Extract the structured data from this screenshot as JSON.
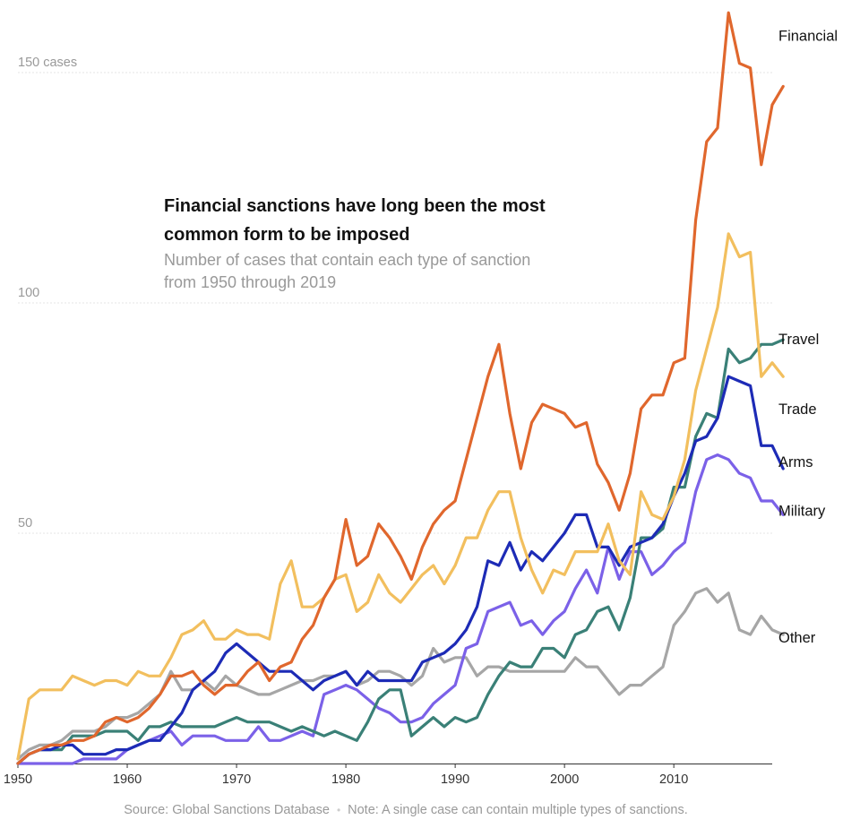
{
  "chart_data": {
    "type": "line",
    "title": "Financial sanctions have long been the most common form to be imposed",
    "subtitle": "Number of cases that contain each type of sanction from 1950 through 2019",
    "xlabel": "",
    "ylabel": "",
    "xlim": [
      1950,
      2019
    ],
    "ylim": [
      0,
      150
    ],
    "x_ticks": [
      {
        "value": 1950,
        "label": "1950"
      },
      {
        "value": 1960,
        "label": "1960"
      },
      {
        "value": 1970,
        "label": "1970"
      },
      {
        "value": 1980,
        "label": "1980"
      },
      {
        "value": 1990,
        "label": "1990"
      },
      {
        "value": 2000,
        "label": "2000"
      },
      {
        "value": 2010,
        "label": "2010"
      }
    ],
    "y_ticks": [
      {
        "value": 50,
        "label": "50"
      },
      {
        "value": 100,
        "label": "100"
      },
      {
        "value": 150,
        "label": "150 cases"
      }
    ],
    "x_start": 1950,
    "series": [
      {
        "name": "Other",
        "color": "#a6a6a6",
        "values": [
          1,
          3,
          4,
          4,
          5,
          7,
          7,
          7,
          8,
          10,
          10,
          11,
          13,
          15,
          20,
          16,
          16,
          18,
          16,
          19,
          17,
          16,
          15,
          15,
          16,
          17,
          18,
          18,
          19,
          19,
          20,
          17,
          18,
          20,
          20,
          19,
          17,
          19,
          25,
          22,
          23,
          23,
          19,
          21,
          21,
          20,
          20,
          20,
          20,
          20,
          20,
          23,
          21,
          21,
          18,
          15,
          17,
          17,
          19,
          21,
          30,
          33,
          37,
          38,
          35,
          37,
          29,
          28,
          32,
          29,
          28
        ]
      },
      {
        "name": "Military",
        "color": "#7b61e8",
        "values": [
          0,
          0,
          0,
          0,
          0,
          0,
          1,
          1,
          1,
          1,
          3,
          4,
          5,
          6,
          7,
          4,
          6,
          6,
          6,
          5,
          5,
          5,
          8,
          5,
          5,
          6,
          7,
          6,
          15,
          16,
          17,
          16,
          14,
          12,
          11,
          9,
          9,
          10,
          13,
          15,
          17,
          25,
          26,
          33,
          34,
          35,
          30,
          31,
          28,
          31,
          33,
          38,
          42,
          37,
          47,
          40,
          46,
          46,
          41,
          43,
          46,
          48,
          59,
          66,
          67,
          66,
          63,
          62,
          57,
          57,
          54
        ]
      },
      {
        "name": "Travel",
        "color": "#3a8077",
        "values": [
          0,
          2,
          3,
          3,
          3,
          6,
          6,
          6,
          7,
          7,
          7,
          5,
          8,
          8,
          9,
          8,
          8,
          8,
          8,
          9,
          10,
          9,
          9,
          9,
          8,
          7,
          8,
          7,
          6,
          7,
          6,
          5,
          9,
          14,
          16,
          16,
          6,
          8,
          10,
          8,
          10,
          9,
          10,
          15,
          19,
          22,
          21,
          21,
          25,
          25,
          23,
          28,
          29,
          33,
          34,
          29,
          36,
          49,
          49,
          51,
          60,
          60,
          71,
          76,
          75,
          90,
          87,
          88,
          91,
          91,
          92
        ]
      },
      {
        "name": "Arms",
        "color": "#1d2bb6",
        "values": [
          0,
          2,
          3,
          3,
          4,
          4,
          2,
          2,
          2,
          3,
          3,
          4,
          5,
          5,
          8,
          11,
          16,
          18,
          20,
          24,
          26,
          24,
          22,
          20,
          20,
          20,
          18,
          16,
          18,
          19,
          20,
          17,
          20,
          18,
          18,
          18,
          18,
          22,
          23,
          24,
          26,
          29,
          34,
          44,
          43,
          48,
          42,
          46,
          44,
          47,
          50,
          54,
          54,
          47,
          47,
          43,
          47,
          48,
          49,
          52,
          58,
          63,
          70,
          71,
          75,
          84,
          83,
          82,
          69,
          69,
          64
        ]
      },
      {
        "name": "Trade",
        "color": "#f2bf5e",
        "values": [
          1,
          14,
          16,
          16,
          16,
          19,
          18,
          17,
          18,
          18,
          17,
          20,
          19,
          19,
          23,
          28,
          29,
          31,
          27,
          27,
          29,
          28,
          28,
          27,
          39,
          44,
          34,
          34,
          36,
          40,
          41,
          33,
          35,
          41,
          37,
          35,
          38,
          41,
          43,
          39,
          43,
          49,
          49,
          55,
          59,
          59,
          49,
          42,
          37,
          42,
          41,
          46,
          46,
          46,
          52,
          44,
          41,
          59,
          54,
          53,
          58,
          66,
          81,
          90,
          99,
          115,
          110,
          111,
          84,
          87,
          84
        ]
      },
      {
        "name": "Financial",
        "color": "#e0672d",
        "values": [
          0,
          2,
          3,
          4,
          4,
          5,
          5,
          6,
          9,
          10,
          9,
          10,
          12,
          15,
          19,
          19,
          20,
          17,
          15,
          17,
          17,
          20,
          22,
          18,
          21,
          22,
          27,
          30,
          36,
          40,
          53,
          43,
          45,
          52,
          49,
          45,
          40,
          47,
          52,
          55,
          57,
          66,
          75,
          84,
          91,
          76,
          64,
          74,
          78,
          77,
          76,
          73,
          74,
          65,
          61,
          55,
          63,
          77,
          80,
          80,
          87,
          88,
          118,
          135,
          138,
          163,
          152,
          151,
          130,
          143,
          147
        ]
      }
    ],
    "legend": "direct labels at line ends (right)"
  },
  "footer": {
    "source": "Source: Global Sanctions Database",
    "separator": "•",
    "note": "Note: A single case can contain multiple types of sanctions."
  }
}
